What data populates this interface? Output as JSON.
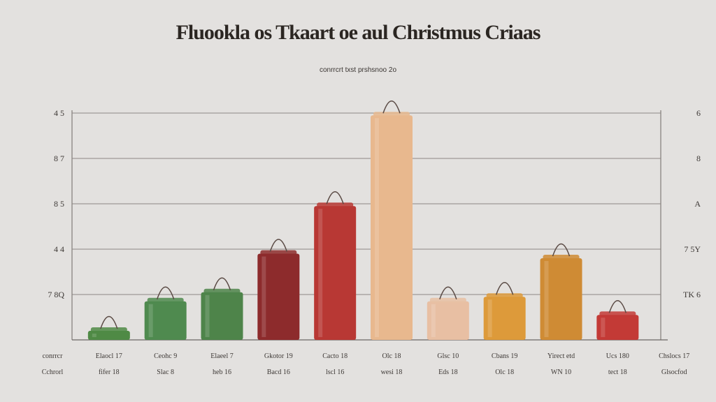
{
  "title": "Fluookla os Tkaart oe aul Christmus Criaas",
  "subtitle": "conrrcrt txst prshsnoo 2o",
  "chart_data": {
    "type": "bar",
    "title": "Fluookla os Tkaart oe aul Christmus Criaas",
    "subtitle": "conrrcrt txst prshsnoo 2o",
    "ylim": [
      0,
      5
    ],
    "grid": true,
    "left_ticks": [
      {
        "value": 1,
        "label": "7 8Q"
      },
      {
        "value": 2,
        "label": "4 4"
      },
      {
        "value": 3,
        "label": "8 5"
      },
      {
        "value": 4,
        "label": "8 7"
      },
      {
        "value": 5,
        "label": "4 5"
      }
    ],
    "right_ticks": [
      {
        "value": 1,
        "label": "TK 6"
      },
      {
        "value": 2,
        "label": "7 5Y"
      },
      {
        "value": 3,
        "label": "A"
      },
      {
        "value": 4,
        "label": "8"
      },
      {
        "value": 5,
        "label": "6"
      }
    ],
    "categories": [
      {
        "line1": "conrrcr",
        "line2": "Cchrorl"
      },
      {
        "line1": "Elaocl 17",
        "line2": "fifer 18"
      },
      {
        "line1": "Ceohc 9",
        "line2": "Slac 8"
      },
      {
        "line1": "Elaeel 7",
        "line2": "heb 16"
      },
      {
        "line1": "Gkotor 19",
        "line2": "Bacd 16"
      },
      {
        "line1": "Cacto 18",
        "line2": "lscl 16"
      },
      {
        "line1": "Olc 18",
        "line2": "wesi 18"
      },
      {
        "line1": "Glsc 10",
        "line2": "Eds 18"
      },
      {
        "line1": "Cbans 19",
        "line2": "Olc 18"
      },
      {
        "line1": "Yirect etd",
        "line2": "WN 10"
      },
      {
        "line1": "Ucs 180",
        "line2": "tect 18"
      },
      {
        "line1": "Chslocs 17",
        "line2": "Glsocfod"
      }
    ],
    "values": [
      null,
      0.2,
      0.85,
      1.05,
      1.9,
      2.95,
      4.95,
      0.85,
      0.95,
      1.8,
      0.55,
      null
    ],
    "colors": [
      null,
      "#4f8a45",
      "#4f8a4f",
      "#4e844a",
      "#8d2b2c",
      "#b83834",
      "#e8b88e",
      "#e8bfa3",
      "#dd9a3a",
      "#cf8b34",
      "#c33a36",
      null
    ]
  }
}
